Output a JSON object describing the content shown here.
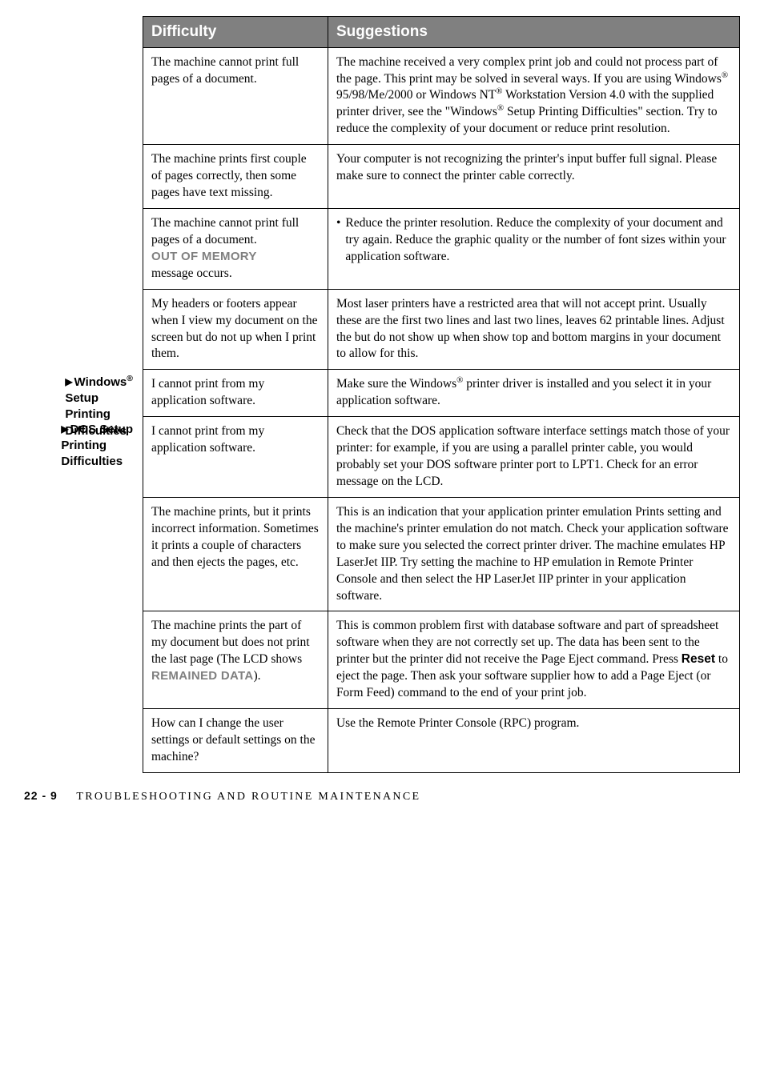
{
  "headers": {
    "difficulty": "Difficulty",
    "suggestions": "Suggestions"
  },
  "rows": [
    {
      "d": "The machine cannot print full pages of a document.",
      "s": ""
    },
    {
      "d": "The machine prints first couple of pages correctly, then some pages have text missing.",
      "s": "Your computer is not recognizing the printer's input buffer full signal.  Please make sure to connect the printer cable correctly."
    },
    {
      "d_pre": "The machine cannot print full pages of a document.",
      "d_mem": "OUT OF MEMORY",
      "d_post": "message occurs.",
      "s": ""
    },
    {
      "d": "My headers or footers appear when I view my document on the screen but do not up when I print them.",
      "s": "Most laser printers have a restricted area that will not accept print.  Usually these are the first two lines and last two lines, leaves 62 printable lines.  Adjust the but do not show up when show top and bottom margins in your document to allow for this."
    },
    {
      "d": "I cannot print from my application software.",
      "s": ""
    },
    {
      "d": "I cannot print from my application software.",
      "s": "Check that the DOS application software interface settings match those of your printer: for example, if you are using a parallel printer cable, you would probably set your DOS software printer port to LPT1. Check for an error message on the LCD."
    },
    {
      "d": "The machine prints, but it prints incorrect information. Sometimes it prints a couple of characters and then ejects the pages, etc.",
      "s": "This is an indication that your application printer emulation Prints setting and the machine's printer emulation do not match. Check your application software to make sure you selected the correct printer driver.  The machine emulates HP LaserJet IIP.  Try setting the machine to HP emulation in Remote Printer Console and then select the HP LaserJet IIP printer in your application software."
    },
    {
      "d_pre": "The machine prints the part of my document but does not print the last page (The LCD shows",
      "d_mem": "REMAINED DATA",
      "d_post": ").",
      "s": ""
    },
    {
      "d": "How can I change the user settings or default settings on the machine?",
      "s": "Use the Remote Printer Console (RPC) program."
    }
  ],
  "side": {
    "windows_line": "Windows",
    "windows_rest": "Setup Printing Difficulties",
    "dos": "DOS Setup Printing Difficulties"
  },
  "row1_s_parts": {
    "p1": "The machine received a very complex print job and could not process part of the page. This print may be solved in several ways. If you are using Windows",
    "p2": " 95/98/Me/2000 or Windows NT",
    "p3": " Workstation Version 4.0 with the supplied printer driver, see the \"Windows",
    "p4": " Setup Printing Difficulties\" section. Try to reduce the complexity of your document or reduce print resolution."
  },
  "row3_s": "Reduce the printer resolution.  Reduce the complexity of your document and try again. Reduce the graphic quality or the number of font sizes within your application software.",
  "row5_s_parts": {
    "p1": "Make sure the Windows",
    "p2": " printer driver is installed and you select it in your application software."
  },
  "row8_s_parts": {
    "p1": "This is common problem first with database software and part of spreadsheet software when they are not correctly set up. The data has been sent to the printer but the printer did not receive the Page Eject command. Press ",
    "reset": "Reset",
    "p2": " to eject the page. Then ask your software supplier how to add a Page Eject (or Form Feed) command to the end of your print job."
  },
  "footer": {
    "page": "22 - 9",
    "title": "TROUBLESHOOTING AND ROUTINE MAINTENANCE"
  }
}
